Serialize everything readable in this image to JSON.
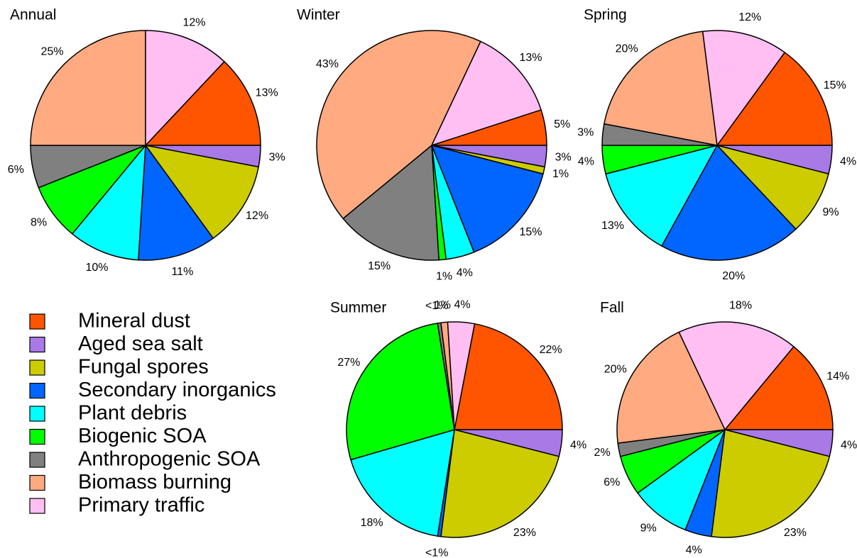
{
  "legend": {
    "categories": [
      "Mineral dust",
      "Aged sea salt",
      "Fungal spores",
      "Secondary inorganics",
      "Plant debris",
      "Biogenic SOA",
      "Anthropogenic SOA",
      "Biomass burning",
      "Primary traffic"
    ],
    "colors": [
      "#ff5500",
      "#a97ae6",
      "#cccc00",
      "#0066ff",
      "#00ffff",
      "#00ff00",
      "#808080",
      "#ffaa80",
      "#ffbff2"
    ]
  },
  "chart_data": [
    {
      "type": "pie",
      "title": "Annual",
      "values": [
        13,
        3,
        12,
        11,
        10,
        8,
        6,
        25,
        12
      ],
      "value_labels": [
        "13%",
        "3%",
        "12%",
        "11%",
        "10%",
        "8%",
        "6%",
        "25%",
        "12%"
      ]
    },
    {
      "type": "pie",
      "title": "Winter",
      "values": [
        5,
        3,
        1,
        15,
        4,
        1,
        15,
        43,
        13
      ],
      "value_labels": [
        "5%",
        "3%",
        "1%",
        "15%",
        "4%",
        "1%",
        "15%",
        "43%",
        "13%"
      ]
    },
    {
      "type": "pie",
      "title": "Spring",
      "values": [
        15,
        4,
        9,
        20,
        13,
        4,
        3,
        20,
        12
      ],
      "value_labels": [
        "15%",
        "4%",
        "9%",
        "20%",
        "13%",
        "4%",
        "3%",
        "20%",
        "12%"
      ]
    },
    {
      "type": "pie",
      "title": "Summer",
      "values": [
        22,
        4,
        23,
        0.5,
        18,
        27,
        0.5,
        1,
        4
      ],
      "value_labels": [
        "22%",
        "4%",
        "23%",
        "<1%",
        "18%",
        "27%",
        "<1%",
        "1%",
        "4%"
      ]
    },
    {
      "type": "pie",
      "title": "Fall",
      "values": [
        14,
        4,
        23,
        4,
        9,
        6,
        2,
        20,
        18
      ],
      "value_labels": [
        "14%",
        "4%",
        "23%",
        "4%",
        "9%",
        "6%",
        "2%",
        "20%",
        "18%"
      ]
    }
  ]
}
